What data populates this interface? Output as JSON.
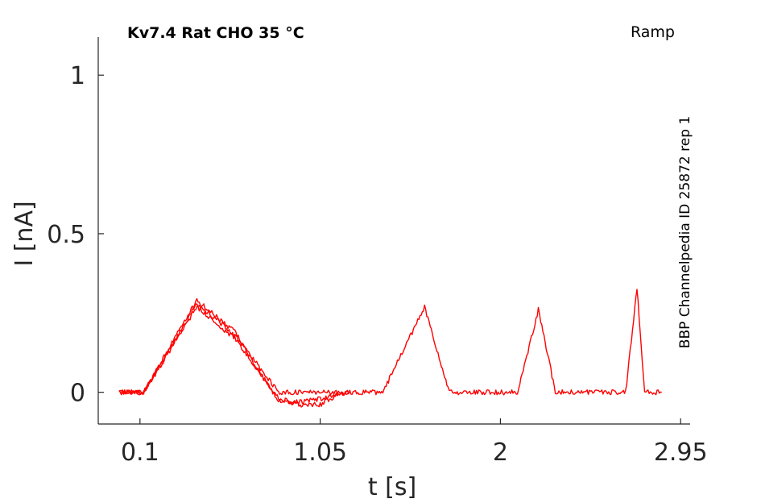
{
  "chart_data": {
    "type": "line",
    "title": "Kv7.4  Rat  CHO  35 °C",
    "protocol_label": "Ramp",
    "side_label": "BBP Channelpedia ID 25872 rep 1",
    "xlabel": "t [s]",
    "ylabel": "I [nA]",
    "xlim": [
      -0.12,
      3.0
    ],
    "ylim": [
      -0.1,
      1.12
    ],
    "x_ticks": [
      {
        "value": 0.1,
        "label": "0.1"
      },
      {
        "value": 1.05,
        "label": "1.05"
      },
      {
        "value": 2.0,
        "label": "2"
      },
      {
        "value": 2.95,
        "label": "2.95"
      }
    ],
    "y_ticks": [
      {
        "value": 0,
        "label": "0"
      },
      {
        "value": 0.5,
        "label": "0.5"
      },
      {
        "value": 1,
        "label": "1"
      }
    ],
    "grid": false,
    "line_color": "#ff0000",
    "axis_color": "#262626",
    "series": [
      {
        "x": [
          -0.01,
          0.12,
          0.4,
          0.6,
          0.83,
          0.95,
          1.2,
          1.38,
          1.6,
          1.73,
          2.09,
          2.2,
          2.29,
          2.66,
          2.72,
          2.76,
          2.85
        ],
        "y": [
          0.0,
          0.0,
          0.28,
          0.18,
          0.0,
          0.0,
          0.0,
          0.0,
          0.27,
          0.0,
          0.0,
          0.26,
          0.0,
          0.0,
          0.33,
          0.0,
          0.0
        ]
      },
      {
        "x": [
          -0.01,
          0.12,
          0.4,
          0.6,
          0.83,
          0.95,
          1.05,
          1.1,
          1.2
        ],
        "y": [
          0.0,
          0.0,
          0.27,
          0.17,
          -0.02,
          -0.04,
          -0.04,
          -0.02,
          0.0
        ]
      },
      {
        "x": [
          -0.01,
          0.12,
          0.4,
          0.6,
          0.83,
          0.95,
          1.05,
          1.2
        ],
        "y": [
          0.0,
          0.0,
          0.29,
          0.19,
          -0.03,
          -0.03,
          -0.02,
          0.0
        ]
      }
    ]
  }
}
